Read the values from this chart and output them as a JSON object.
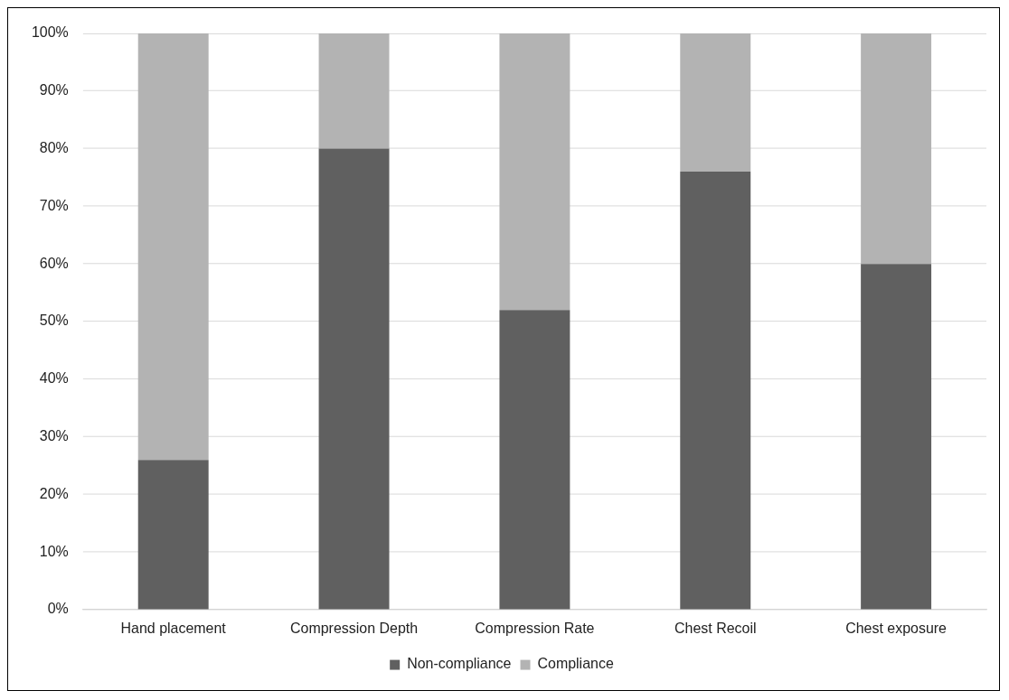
{
  "chart_data": {
    "type": "bar",
    "stacked": true,
    "categories": [
      "Hand placement",
      "Compression Depth",
      "Compression Rate",
      "Chest Recoil",
      "Chest exposure"
    ],
    "series": [
      {
        "name": "Non-compliance",
        "color": "#606060",
        "values": [
          26,
          80,
          52,
          76,
          60
        ]
      },
      {
        "name": "Compliance",
        "color": "#b3b3b3",
        "values": [
          74,
          20,
          48,
          24,
          40
        ]
      }
    ],
    "ylim": [
      0,
      100
    ],
    "yticks": [
      {
        "value": 0,
        "label": "0%"
      },
      {
        "value": 10,
        "label": "10%"
      },
      {
        "value": 20,
        "label": "20%"
      },
      {
        "value": 30,
        "label": "30%"
      },
      {
        "value": 40,
        "label": "40%"
      },
      {
        "value": 50,
        "label": "50%"
      },
      {
        "value": 60,
        "label": "60%"
      },
      {
        "value": 70,
        "label": "70%"
      },
      {
        "value": 80,
        "label": "80%"
      },
      {
        "value": 90,
        "label": "90%"
      },
      {
        "value": 100,
        "label": "100%"
      }
    ],
    "grid": "y",
    "legend": "bottom"
  }
}
